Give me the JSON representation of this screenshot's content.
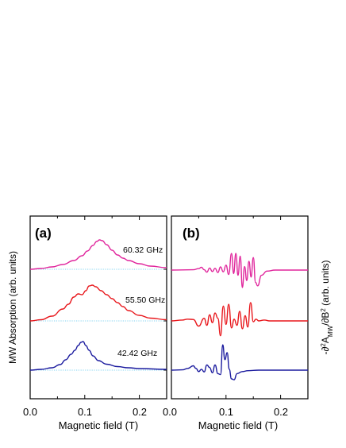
{
  "chart_data": [
    {
      "type": "line",
      "panel_label": "(a)",
      "xlabel": "Magnetic field (T)",
      "ylabel": "MW Absorption (arb. units)",
      "xlim": [
        0,
        0.25
      ],
      "xticks": [
        "0.0",
        "0.1",
        "0.2",
        "0.0"
      ],
      "baseline_color": "#7fd3f0",
      "series": [
        {
          "name": "60.32 GHz",
          "color": "#e0259c",
          "offset": 2,
          "baseline": 0.0,
          "x": [
            0.0,
            0.02,
            0.04,
            0.06,
            0.08,
            0.095,
            0.105,
            0.115,
            0.122,
            0.127,
            0.132,
            0.14,
            0.15,
            0.16,
            0.17,
            0.18,
            0.2,
            0.22,
            0.25
          ],
          "y": [
            0.0,
            0.02,
            0.06,
            0.12,
            0.22,
            0.34,
            0.46,
            0.6,
            0.7,
            0.74,
            0.72,
            0.62,
            0.48,
            0.36,
            0.28,
            0.22,
            0.14,
            0.08,
            0.04
          ]
        },
        {
          "name": "55.50 GHz",
          "color": "#e8161b",
          "offset": 1,
          "baseline": 0.0,
          "x": [
            0.0,
            0.02,
            0.04,
            0.06,
            0.07,
            0.08,
            0.088,
            0.095,
            0.102,
            0.108,
            0.114,
            0.12,
            0.13,
            0.14,
            0.15,
            0.16,
            0.17,
            0.18,
            0.2,
            0.22,
            0.25
          ],
          "y": [
            0.0,
            0.03,
            0.12,
            0.3,
            0.42,
            0.6,
            0.68,
            0.66,
            0.76,
            0.88,
            0.9,
            0.86,
            0.76,
            0.66,
            0.56,
            0.46,
            0.36,
            0.26,
            0.14,
            0.07,
            0.03
          ]
        },
        {
          "name": "42.42 GHz",
          "color": "#1a1a9e",
          "offset": 0,
          "baseline": 0.0,
          "x": [
            0.0,
            0.02,
            0.04,
            0.055,
            0.065,
            0.075,
            0.082,
            0.088,
            0.093,
            0.097,
            0.102,
            0.108,
            0.115,
            0.125,
            0.14,
            0.16,
            0.18,
            0.2,
            0.25
          ],
          "y": [
            0.0,
            0.02,
            0.06,
            0.14,
            0.26,
            0.4,
            0.5,
            0.62,
            0.7,
            0.72,
            0.62,
            0.5,
            0.36,
            0.24,
            0.15,
            0.09,
            0.06,
            0.04,
            0.02
          ]
        }
      ]
    },
    {
      "type": "line",
      "panel_label": "(b)",
      "xlabel": "Magnetic field (T)",
      "ylabel": "-∂²A_MW/∂B² (arb. units)",
      "ylabel_parts": {
        "prefix": "-∂",
        "sup1": "2",
        "mid": "A",
        "sub": "MW",
        "slash": "/∂B",
        "sup2": "2",
        "suffix": " (arb. units)"
      },
      "xlim": [
        0,
        0.25
      ],
      "xticks": [
        "0.1",
        "0.2"
      ],
      "series": [
        {
          "name": "60.32 GHz",
          "color": "#e0259c",
          "offset": 2,
          "x": [
            0.0,
            0.04,
            0.05,
            0.055,
            0.06,
            0.065,
            0.07,
            0.075,
            0.08,
            0.085,
            0.09,
            0.095,
            0.1,
            0.105,
            0.11,
            0.114,
            0.118,
            0.122,
            0.126,
            0.13,
            0.134,
            0.138,
            0.142,
            0.146,
            0.15,
            0.154,
            0.158,
            0.165,
            0.175,
            0.19,
            0.25
          ],
          "y": [
            0.0,
            0.02,
            0.08,
            0.16,
            0.02,
            -0.12,
            0.12,
            -0.08,
            0.1,
            -0.14,
            0.18,
            -0.1,
            0.28,
            -0.25,
            0.95,
            -0.2,
            0.96,
            -0.3,
            0.8,
            -1.0,
            0.2,
            -0.6,
            0.5,
            -0.4,
            0.72,
            -0.7,
            -0.9,
            -0.3,
            -0.06,
            0.0,
            0.0
          ]
        },
        {
          "name": "55.50 GHz",
          "color": "#e8161b",
          "offset": 1,
          "x": [
            0.0,
            0.02,
            0.03,
            0.04,
            0.05,
            0.06,
            0.065,
            0.07,
            0.075,
            0.08,
            0.085,
            0.09,
            0.095,
            0.1,
            0.105,
            0.11,
            0.115,
            0.12,
            0.125,
            0.13,
            0.135,
            0.14,
            0.145,
            0.15,
            0.155,
            0.16,
            0.17,
            0.18,
            0.2,
            0.25
          ],
          "y": [
            0.0,
            0.05,
            0.1,
            0.08,
            -0.3,
            0.15,
            -0.25,
            0.35,
            -0.1,
            0.45,
            0.15,
            -0.85,
            0.85,
            -0.2,
            0.95,
            -0.4,
            0.1,
            -0.25,
            0.55,
            -0.45,
            0.3,
            -0.35,
            1.05,
            -0.05,
            0.1,
            0.0,
            0.05,
            0.0,
            0.0,
            0.0
          ]
        },
        {
          "name": "42.42 GHz",
          "color": "#1a1a9e",
          "offset": 0,
          "x": [
            0.0,
            0.02,
            0.03,
            0.04,
            0.045,
            0.05,
            0.055,
            0.06,
            0.065,
            0.07,
            0.075,
            0.08,
            0.085,
            0.09,
            0.094,
            0.098,
            0.102,
            0.106,
            0.11,
            0.115,
            0.12,
            0.13,
            0.14,
            0.16,
            0.2,
            0.25
          ],
          "y": [
            0.0,
            0.02,
            0.1,
            0.25,
            0.1,
            -0.08,
            0.05,
            -0.1,
            0.3,
            0.15,
            -0.15,
            0.3,
            -0.2,
            -0.25,
            1.45,
            0.6,
            1.0,
            0.05,
            -0.5,
            -0.55,
            -0.2,
            -0.08,
            -0.03,
            0.0,
            0.0,
            0.0
          ]
        }
      ]
    }
  ]
}
